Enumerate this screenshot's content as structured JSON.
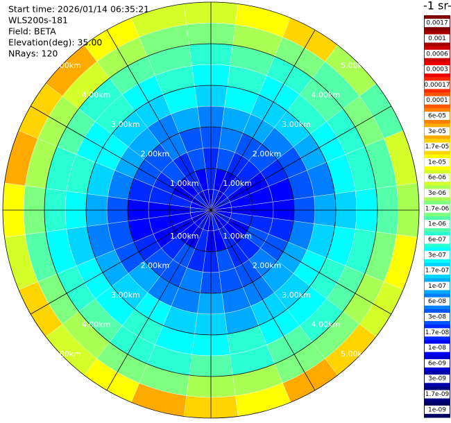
{
  "chart_data": {
    "type": "polar-heatmap",
    "info_lines": [
      "Start time: 2026/01/14 06:35:21",
      "WLS200s-181",
      "Field: BETA",
      "Elevation(deg): 35.00",
      "NRays: 120"
    ],
    "colorbar_title": "-1 sr-",
    "rlim": [
      0,
      5
    ],
    "range_edges": [
      0,
      0.5,
      1,
      1.5,
      2,
      2.5,
      3,
      3.5,
      4,
      4.5,
      5
    ],
    "azimuths": [
      0,
      15,
      30,
      45,
      60,
      75,
      90,
      105,
      120,
      135,
      150,
      165,
      180,
      195,
      210,
      225,
      240,
      255,
      270,
      285,
      300,
      315,
      330,
      345
    ],
    "rings": [
      {
        "value": 1,
        "label": "1.00km"
      },
      {
        "value": 2,
        "label": "2.00km"
      },
      {
        "value": 3,
        "label": "3.00km"
      },
      {
        "value": 4,
        "label": "4.00km"
      },
      {
        "value": 5,
        "label": "5.00km"
      }
    ],
    "spokes": [
      0,
      30,
      60,
      90,
      120,
      150,
      180,
      210,
      240,
      270,
      300,
      330
    ],
    "z": [
      [
        1e-08,
        1.7e-08,
        1e-08,
        1e-08,
        1.7e-08,
        1e-08,
        1e-08,
        1e-08,
        1.7e-08,
        1e-08,
        1e-08,
        1.7e-08,
        1e-08,
        1e-08,
        1.7e-08,
        1e-08,
        1e-08,
        1e-08,
        1.7e-08,
        1e-08,
        1e-08,
        1.7e-08,
        1e-08,
        1e-08
      ],
      [
        1.7e-08,
        1e-08,
        1e-08,
        1.7e-08,
        1e-08,
        1e-08,
        1e-08,
        1.7e-08,
        1e-08,
        1e-08,
        1.7e-08,
        1e-08,
        1e-08,
        1.7e-08,
        1e-08,
        1e-08,
        1e-08,
        1e-08,
        1e-08,
        1.7e-08,
        1e-08,
        1e-08,
        1.7e-08,
        1e-08
      ],
      [
        1.7e-08,
        3e-08,
        1.7e-08,
        1.7e-08,
        1e-08,
        1e-08,
        1e-08,
        1.7e-08,
        3e-08,
        1.7e-08,
        1.7e-08,
        3e-08,
        1.7e-08,
        1.7e-08,
        3e-08,
        1.7e-08,
        1e-08,
        1e-08,
        1e-08,
        1.7e-08,
        1.7e-08,
        3e-08,
        1.7e-08,
        3e-08
      ],
      [
        3e-08,
        6e-08,
        3e-08,
        3e-08,
        1.7e-08,
        1e-08,
        1e-08,
        1.7e-08,
        3e-08,
        6e-08,
        3e-08,
        3e-08,
        3e-08,
        6e-08,
        3e-08,
        3e-08,
        1.7e-08,
        1e-08,
        1e-08,
        1.7e-08,
        3e-08,
        3e-08,
        6e-08,
        3e-08
      ],
      [
        6e-08,
        1e-07,
        1e-07,
        6e-08,
        3e-08,
        3e-08,
        3e-08,
        6e-08,
        1e-07,
        1e-07,
        6e-08,
        6e-08,
        1e-07,
        6e-08,
        6e-08,
        1e-07,
        3e-08,
        3e-08,
        3e-08,
        6e-08,
        1e-07,
        1e-07,
        6e-08,
        1e-07
      ],
      [
        1.7e-07,
        3e-07,
        1.7e-07,
        1.7e-07,
        1e-07,
        6e-08,
        1e-07,
        1.7e-07,
        3e-07,
        1.7e-07,
        1.7e-07,
        1e-07,
        1.7e-07,
        1.7e-07,
        3e-07,
        1.7e-07,
        1e-07,
        6e-08,
        1e-07,
        1.7e-07,
        3e-07,
        1.7e-07,
        1.7e-07,
        3e-07
      ],
      [
        3e-07,
        6e-07,
        3e-07,
        6e-07,
        3e-07,
        3e-07,
        1.7e-07,
        3e-07,
        6e-07,
        3e-07,
        3e-07,
        6e-07,
        3e-07,
        3e-07,
        6e-07,
        3e-07,
        3e-07,
        1.7e-07,
        3e-07,
        6e-07,
        3e-07,
        6e-07,
        3e-07,
        6e-07
      ],
      [
        6e-07,
        1e-06,
        6e-07,
        1e-06,
        6e-07,
        6e-07,
        3e-07,
        6e-07,
        1e-06,
        6e-07,
        1e-06,
        6e-07,
        1e-06,
        6e-07,
        6e-07,
        1e-06,
        6e-07,
        3e-07,
        6e-07,
        6e-07,
        1e-06,
        6e-07,
        1e-06,
        1e-06
      ],
      [
        1.7e-06,
        3e-06,
        1.7e-06,
        1e-06,
        1.7e-06,
        1e-06,
        1e-06,
        1.7e-06,
        3e-06,
        1.7e-06,
        1.7e-06,
        3e-06,
        3e-06,
        1.7e-06,
        1.7e-06,
        3e-06,
        1.7e-06,
        1e-06,
        1.7e-06,
        3e-06,
        3e-06,
        6e-06,
        3e-06,
        1.7e-06
      ],
      [
        6e-06,
        1e-05,
        1.7e-05,
        3e-06,
        1e-06,
        6e-06,
        3e-06,
        1e-05,
        6e-06,
        1.7e-05,
        3e-05,
        1e-05,
        1.7e-05,
        3e-05,
        1e-05,
        6e-06,
        1.7e-05,
        6e-06,
        1e-05,
        3e-05,
        1.7e-05,
        3e-05,
        1e-05,
        6e-06
      ]
    ],
    "colorbar": {
      "ticks": [
        {
          "value": 0.0017,
          "label": "0.0017"
        },
        {
          "value": 0.001,
          "label": "0.001"
        },
        {
          "value": 0.0006,
          "label": "0.0006"
        },
        {
          "value": 0.0003,
          "label": "0.0003"
        },
        {
          "value": 0.00017,
          "label": "0.00017"
        },
        {
          "value": 0.0001,
          "label": "0.0001"
        },
        {
          "value": 6e-05,
          "label": "6e-05"
        },
        {
          "value": 3e-05,
          "label": "3e-05"
        },
        {
          "value": 1.7e-05,
          "label": "1.7e-05"
        },
        {
          "value": 1e-05,
          "label": "1e-05"
        },
        {
          "value": 6e-06,
          "label": "6e-06"
        },
        {
          "value": 3e-06,
          "label": "3e-06"
        },
        {
          "value": 1.7e-06,
          "label": "1.7e-06"
        },
        {
          "value": 1e-06,
          "label": "1e-06"
        },
        {
          "value": 6e-07,
          "label": "6e-07"
        },
        {
          "value": 3e-07,
          "label": "3e-07"
        },
        {
          "value": 1.7e-07,
          "label": "1.7e-07"
        },
        {
          "value": 1e-07,
          "label": "1e-07"
        },
        {
          "value": 6e-08,
          "label": "6e-08"
        },
        {
          "value": 3e-08,
          "label": "3e-08"
        },
        {
          "value": 1.7e-08,
          "label": "1.7e-08"
        },
        {
          "value": 1e-08,
          "label": "1e-08"
        },
        {
          "value": 6e-09,
          "label": "6e-09"
        },
        {
          "value": 3e-09,
          "label": "3e-09"
        },
        {
          "value": 1.7e-09,
          "label": "1.7e-09"
        },
        {
          "value": 1e-09,
          "label": "1e-09"
        }
      ],
      "colors": [
        "#800000",
        "#a50000",
        "#cc0000",
        "#f00000",
        "#ff2a00",
        "#ff5500",
        "#ff7f00",
        "#ffaa00",
        "#ffd400",
        "#ffff00",
        "#d4ff2a",
        "#aaff55",
        "#7fff7f",
        "#55ffaa",
        "#2affd4",
        "#00ffff",
        "#00d4ff",
        "#00aaff",
        "#0080ff",
        "#0055ff",
        "#002aff",
        "#0000ff",
        "#0000d0",
        "#0000a8",
        "#000080",
        "#000060"
      ]
    }
  }
}
